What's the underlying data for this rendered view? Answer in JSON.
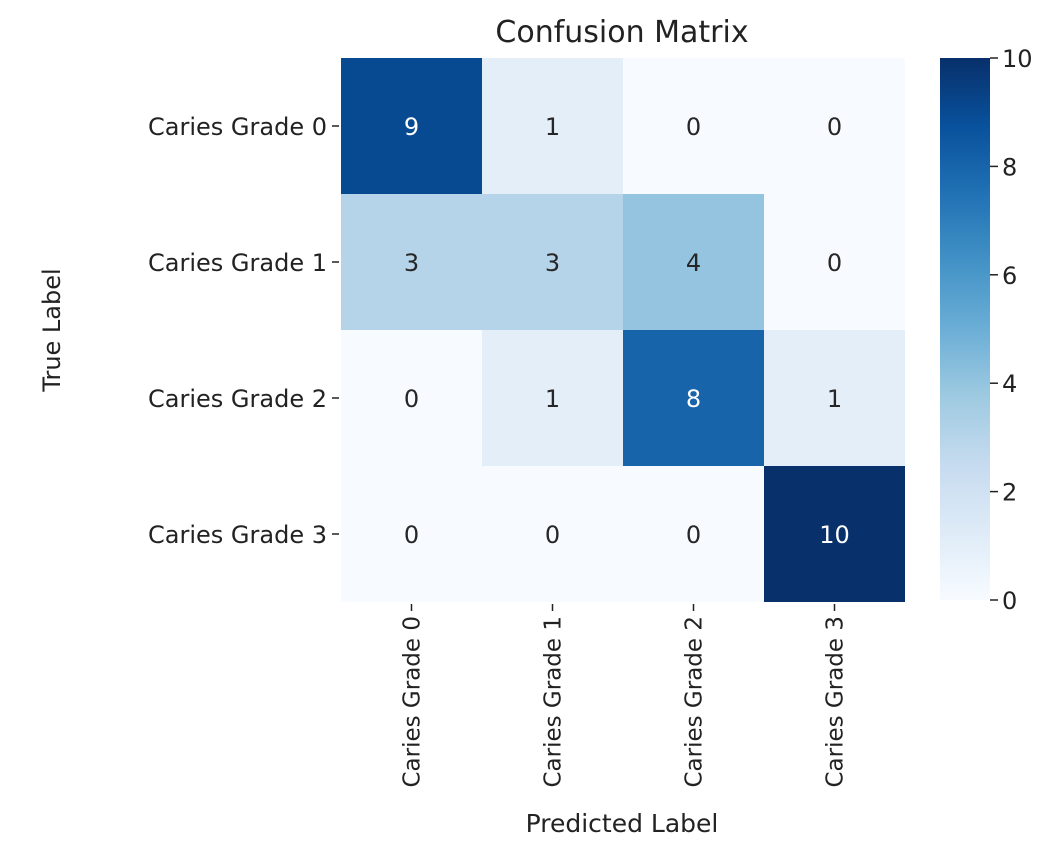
{
  "chart_data": {
    "type": "heatmap",
    "title": "Confusion Matrix",
    "xlabel": "Predicted Label",
    "ylabel": "True Label",
    "row_labels": [
      "Caries Grade 0",
      "Caries Grade 1",
      "Caries Grade 2",
      "Caries Grade 3"
    ],
    "col_labels": [
      "Caries Grade 0",
      "Caries Grade 1",
      "Caries Grade 2",
      "Caries Grade 3"
    ],
    "values": [
      [
        9,
        1,
        0,
        0
      ],
      [
        3,
        3,
        4,
        0
      ],
      [
        0,
        1,
        8,
        1
      ],
      [
        0,
        0,
        0,
        10
      ]
    ],
    "colorbar": {
      "min": 0,
      "max": 10,
      "ticks": [
        0,
        2,
        4,
        6,
        8,
        10
      ]
    },
    "colormap": [
      "#f7fbff",
      "#deebf7",
      "#c6dbef",
      "#9ecae1",
      "#6baed6",
      "#4292c6",
      "#2171b5",
      "#08519c",
      "#08306b"
    ]
  }
}
